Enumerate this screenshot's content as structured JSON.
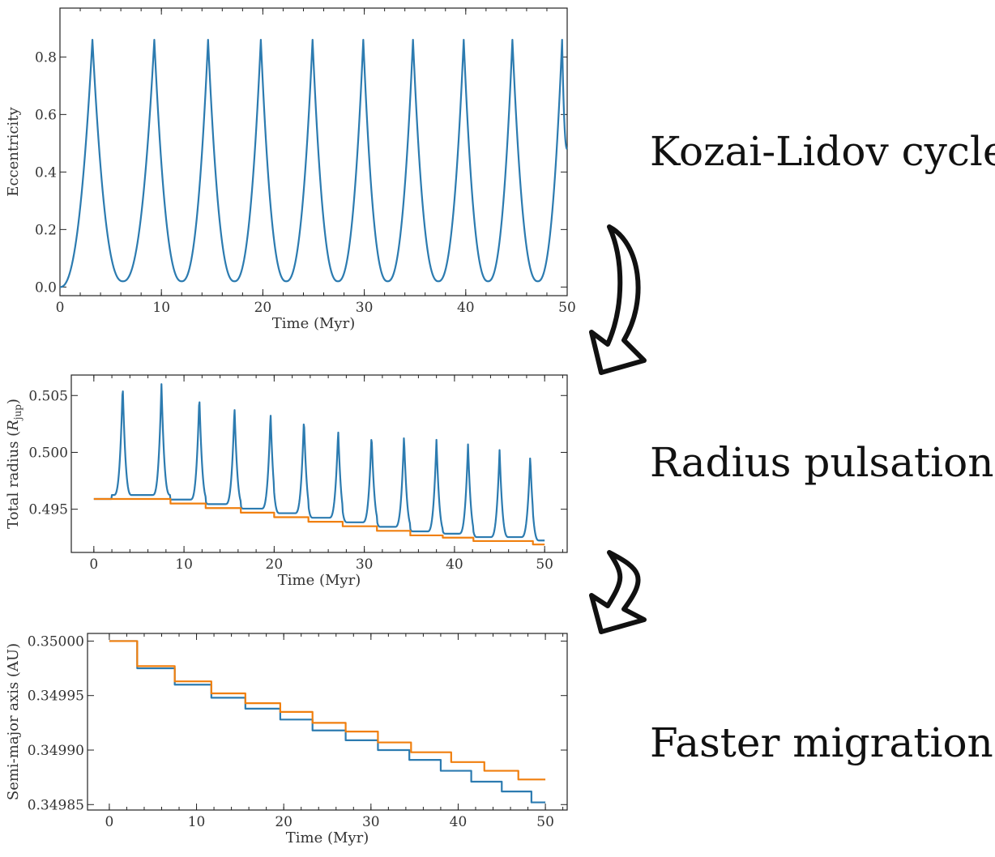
{
  "annotations": {
    "kozai": "Kozai-Lidov cycles",
    "radius": "Radius pulsations",
    "migration": "Faster migration"
  },
  "colors": {
    "blue": "#2c7bb0",
    "orange": "#f07f0e",
    "arrow_stroke": "#111111"
  },
  "chart_data": [
    {
      "type": "line",
      "xlabel": "Time (Myr)",
      "ylabel": "Eccentricity",
      "xlim": [
        0,
        50
      ],
      "ylim": [
        -0.03,
        0.97
      ],
      "xticks": [
        0,
        10,
        20,
        30,
        40,
        50
      ],
      "yticks": [
        0.0,
        0.2,
        0.4,
        0.6,
        0.8
      ],
      "xtick_labels": [
        "0",
        "10",
        "20",
        "30",
        "40",
        "50"
      ],
      "ytick_labels": [
        "0.0",
        "0.2",
        "0.4",
        "0.6",
        "0.8"
      ],
      "series": [
        {
          "color": "blue",
          "peaks_x": [
            3.2,
            9.3,
            14.6,
            19.8,
            24.9,
            29.9,
            34.8,
            39.8,
            44.6,
            49.5
          ],
          "minima_x": [
            6.2,
            12.0,
            17.2,
            22.3,
            27.4,
            32.3,
            37.3,
            42.2,
            47.1
          ],
          "x_start": 0,
          "x_end": 50,
          "peak_value": 0.86,
          "start_value": 0.0,
          "min_value": 0.02,
          "end_value": 0.48
        }
      ]
    },
    {
      "type": "line",
      "xlabel": "Time (Myr)",
      "ylabel": "Total radius (",
      "ylabel_symbol": "R",
      "ylabel_sub": "jup",
      "ylabel_close": ")",
      "xlim": [
        -2.5,
        52.5
      ],
      "ylim": [
        0.4912,
        0.5068
      ],
      "xticks": [
        0,
        10,
        20,
        30,
        40,
        50
      ],
      "yticks": [
        0.495,
        0.5,
        0.505
      ],
      "xtick_labels": [
        "0",
        "10",
        "20",
        "30",
        "40",
        "50"
      ],
      "ytick_labels": [
        "0.495",
        "0.500",
        "0.505"
      ],
      "series": [
        {
          "color": "blue",
          "peaks": [
            [
              3.2,
              0.506
            ],
            [
              7.5,
              0.506
            ],
            [
              11.7,
              0.505
            ],
            [
              15.6,
              0.504
            ],
            [
              19.6,
              0.5035
            ],
            [
              23.3,
              0.503
            ],
            [
              27.1,
              0.502
            ],
            [
              30.8,
              0.5016
            ],
            [
              34.4,
              0.5015
            ],
            [
              38.0,
              0.5011
            ],
            [
              41.5,
              0.5007
            ],
            [
              45.0,
              0.5002
            ],
            [
              48.4,
              0.4997
            ]
          ],
          "half_width": 1.0,
          "x_start": 0,
          "x_end": 50
        },
        {
          "color": "orange",
          "steps": [
            [
              0,
              0.4959
            ],
            [
              8.5,
              0.4955
            ],
            [
              12.4,
              0.4951
            ],
            [
              16.3,
              0.4947
            ],
            [
              20.0,
              0.4943
            ],
            [
              23.8,
              0.4939
            ],
            [
              27.6,
              0.4935
            ],
            [
              31.4,
              0.4931
            ],
            [
              35.1,
              0.4927
            ],
            [
              38.7,
              0.4925
            ],
            [
              42.1,
              0.4922
            ],
            [
              45.5,
              0.4922
            ],
            [
              48.7,
              0.4919
            ],
            [
              50,
              0.4919
            ]
          ]
        }
      ]
    },
    {
      "type": "line",
      "xlabel": "Time (Myr)",
      "ylabel": "Semi-major axis (AU)",
      "xlim": [
        -2.5,
        52.5
      ],
      "ylim": [
        0.349845,
        0.350007
      ],
      "xticks": [
        0,
        10,
        20,
        30,
        40,
        50
      ],
      "yticks": [
        0.34985,
        0.3499,
        0.34995,
        0.35
      ],
      "xtick_labels": [
        "0",
        "10",
        "20",
        "30",
        "40",
        "50"
      ],
      "ytick_labels": [
        "0.34985",
        "0.34990",
        "0.34995",
        "0.35000"
      ],
      "series": [
        {
          "color": "blue",
          "steps": [
            [
              0,
              0.35
            ],
            [
              3.2,
              0.349975
            ],
            [
              7.5,
              0.34996
            ],
            [
              11.7,
              0.349948
            ],
            [
              15.6,
              0.349938
            ],
            [
              19.6,
              0.349928
            ],
            [
              23.3,
              0.349918
            ],
            [
              27.1,
              0.349909
            ],
            [
              30.8,
              0.3499
            ],
            [
              34.4,
              0.349891
            ],
            [
              38.0,
              0.349881
            ],
            [
              41.5,
              0.349871
            ],
            [
              45.0,
              0.349862
            ],
            [
              48.4,
              0.349852
            ],
            [
              50,
              0.349852
            ]
          ]
        },
        {
          "color": "orange",
          "steps": [
            [
              0,
              0.35
            ],
            [
              3.2,
              0.349977
            ],
            [
              7.5,
              0.349963
            ],
            [
              11.7,
              0.349952
            ],
            [
              15.6,
              0.349943
            ],
            [
              19.6,
              0.349935
            ],
            [
              23.3,
              0.349925
            ],
            [
              27.1,
              0.349917
            ],
            [
              30.8,
              0.349907
            ],
            [
              34.6,
              0.349898
            ],
            [
              39.2,
              0.349889
            ],
            [
              43.0,
              0.349881
            ],
            [
              46.9,
              0.349873
            ],
            [
              50,
              0.349873
            ]
          ]
        }
      ]
    }
  ]
}
